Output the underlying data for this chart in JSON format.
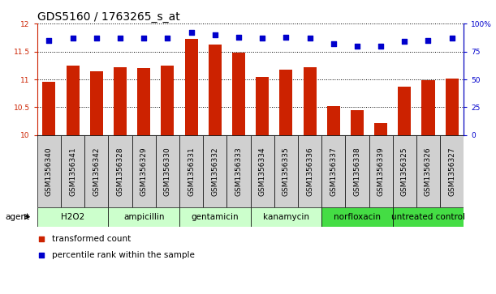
{
  "title": "GDS5160 / 1763265_s_at",
  "samples": [
    "GSM1356340",
    "GSM1356341",
    "GSM1356342",
    "GSM1356328",
    "GSM1356329",
    "GSM1356330",
    "GSM1356331",
    "GSM1356332",
    "GSM1356333",
    "GSM1356334",
    "GSM1356335",
    "GSM1356336",
    "GSM1356337",
    "GSM1356338",
    "GSM1356339",
    "GSM1356325",
    "GSM1356326",
    "GSM1356327"
  ],
  "transformed_count": [
    10.95,
    11.25,
    11.15,
    11.22,
    11.2,
    11.25,
    11.72,
    11.63,
    11.48,
    11.05,
    11.18,
    11.22,
    10.52,
    10.45,
    10.22,
    10.87,
    10.98,
    11.02
  ],
  "percentile_rank": [
    85,
    87,
    87,
    87,
    87,
    87,
    92,
    90,
    88,
    87,
    88,
    87,
    82,
    80,
    80,
    84,
    85,
    87
  ],
  "agents": [
    {
      "name": "H2O2",
      "start": 0,
      "end": 3,
      "light": true
    },
    {
      "name": "ampicillin",
      "start": 3,
      "end": 6,
      "light": true
    },
    {
      "name": "gentamicin",
      "start": 6,
      "end": 9,
      "light": true
    },
    {
      "name": "kanamycin",
      "start": 9,
      "end": 12,
      "light": true
    },
    {
      "name": "norfloxacin",
      "start": 12,
      "end": 15,
      "light": false
    },
    {
      "name": "untreated control",
      "start": 15,
      "end": 18,
      "light": false
    }
  ],
  "ylim_left": [
    10.0,
    12.0
  ],
  "ylim_right": [
    0,
    100
  ],
  "yticks_left": [
    10.0,
    10.5,
    11.0,
    11.5,
    12.0
  ],
  "yticks_right": [
    0,
    25,
    50,
    75,
    100
  ],
  "ytick_labels_left": [
    "10",
    "10.5",
    "11",
    "11.5",
    "12"
  ],
  "ytick_labels_right": [
    "0",
    "25",
    "50",
    "75",
    "100%"
  ],
  "bar_color": "#cc2200",
  "dot_color": "#0000cc",
  "agent_color_light": "#ccffcc",
  "agent_color_dark": "#44dd44",
  "sample_bg_color": "#d0d0d0",
  "bg_color": "#ffffff",
  "title_fontsize": 10,
  "tick_fontsize": 6.5,
  "agent_fontsize": 7.5,
  "legend_fontsize": 7.5
}
